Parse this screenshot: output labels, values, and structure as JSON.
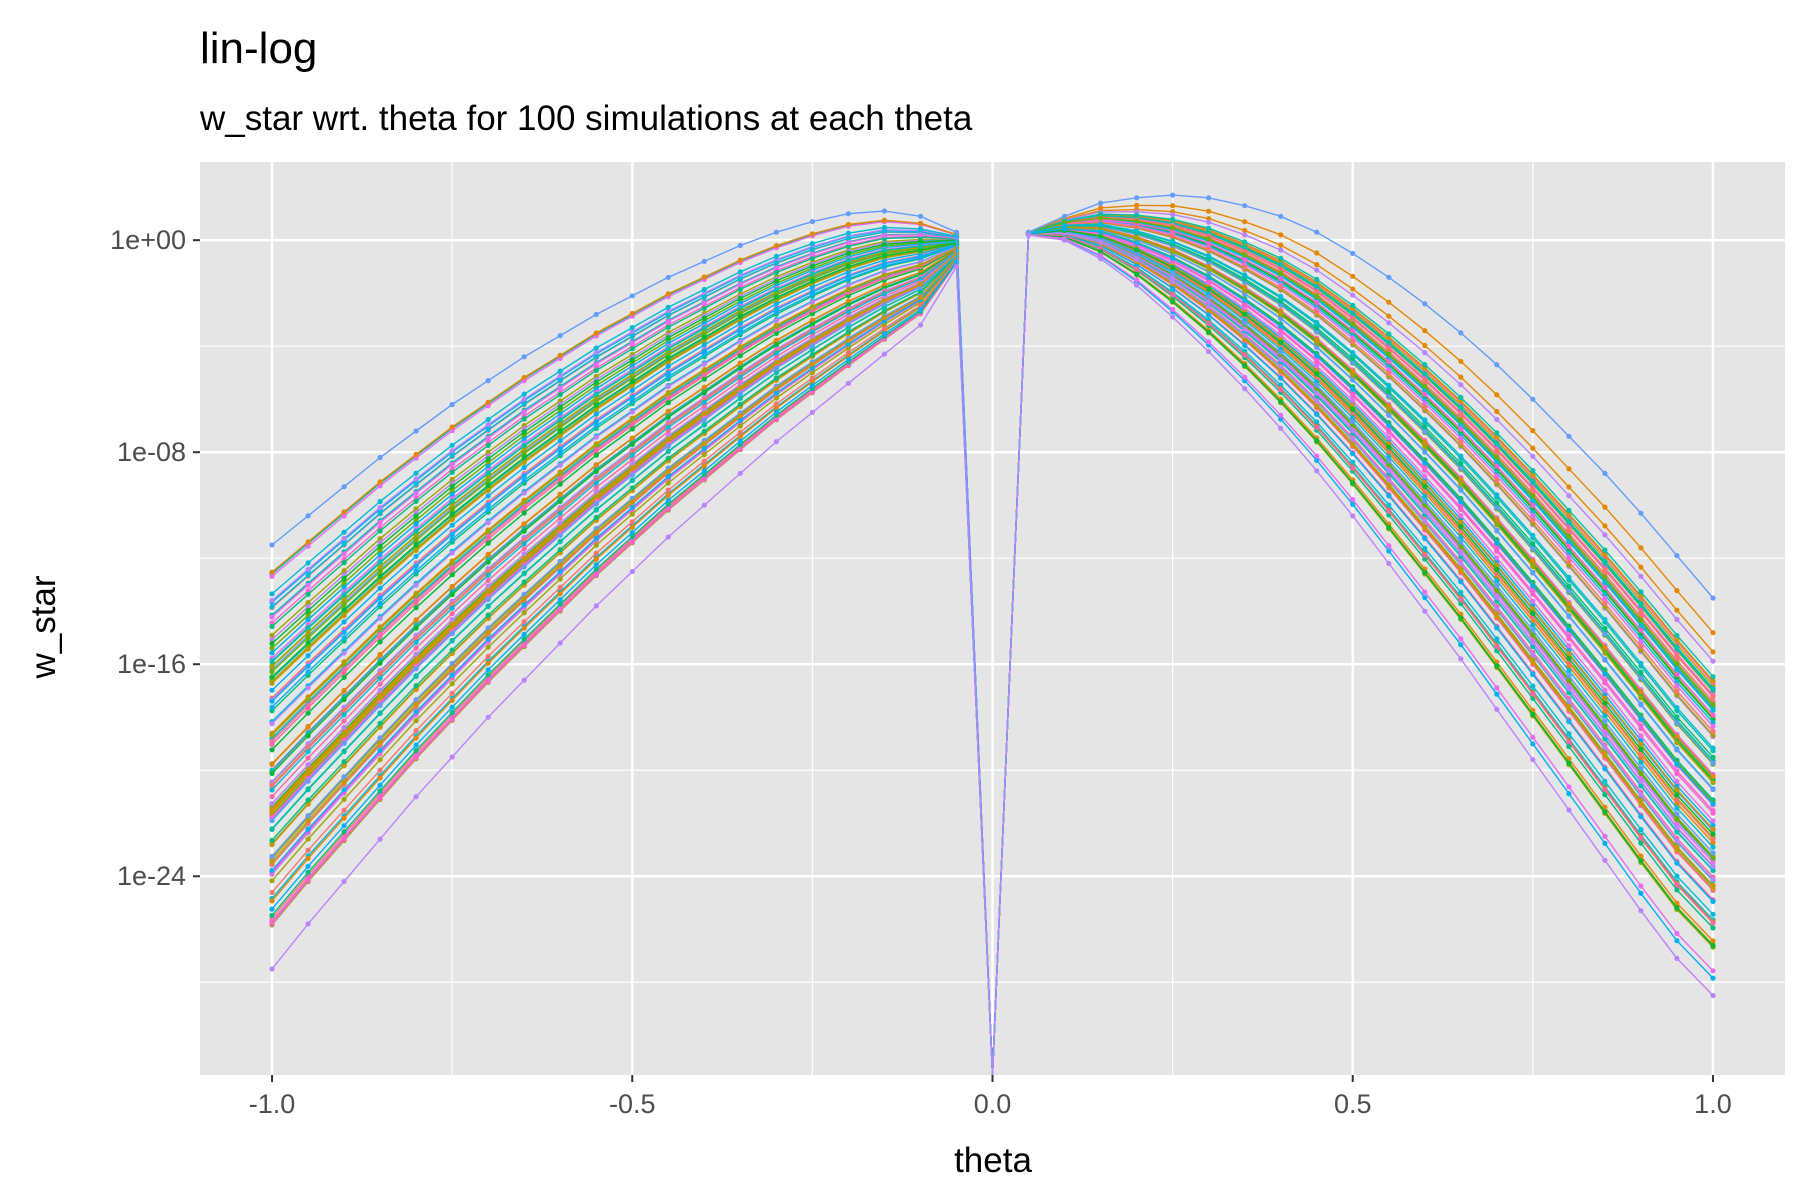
{
  "chart_data": {
    "type": "line",
    "title": "lin-log",
    "subtitle": "w_star wrt. theta for 100 simulations at each theta",
    "xlabel": "theta",
    "ylabel": "w_star",
    "xlim": [
      -1.1,
      1.1
    ],
    "ylim_log10": [
      -31.5,
      2.95
    ],
    "y_scale": "log10",
    "x_ticks": [
      -1.0,
      -0.5,
      0.0,
      0.5,
      1.0
    ],
    "x_tick_labels": [
      "-1.0",
      "-0.5",
      "0.0",
      "0.5",
      "1.0"
    ],
    "y_ticks_log10": [
      0,
      -8,
      -16,
      -24
    ],
    "y_tick_labels": [
      "1e+00",
      "1e-08",
      "1e-16",
      "1e-24"
    ],
    "x": [
      -1.0,
      -0.95,
      -0.9,
      -0.85,
      -0.8,
      -0.75,
      -0.7,
      -0.65,
      -0.6,
      -0.55,
      -0.5,
      -0.45,
      -0.4,
      -0.35,
      -0.3,
      -0.25,
      -0.2,
      -0.15,
      -0.1,
      -0.05,
      0.0,
      0.05,
      0.1,
      0.15,
      0.2,
      0.25,
      0.3,
      0.35,
      0.4,
      0.45,
      0.5,
      0.55,
      0.6,
      0.65,
      0.7,
      0.75,
      0.8,
      0.85,
      0.9,
      0.95,
      1.0
    ],
    "n_series": 100,
    "grid": true,
    "legend": "none",
    "panel_background": "#e5e5e5",
    "grid_color": "#ffffff",
    "reference_series": [
      {
        "values_log10": [
          -11.5,
          -10.4,
          -9.3,
          -8.2,
          -7.2,
          -6.2,
          -5.3,
          -4.4,
          -3.6,
          -2.8,
          -2.1,
          -1.4,
          -0.8,
          -0.2,
          0.3,
          0.7,
          1.0,
          1.1,
          0.9,
          0.3,
          -31.5,
          0.3,
          0.9,
          1.4,
          1.6,
          1.7,
          1.6,
          1.3,
          0.9,
          0.3,
          -0.5,
          -1.4,
          -2.4,
          -3.5,
          -4.7,
          -6.0,
          -7.4,
          -8.8,
          -10.3,
          -11.9,
          -13.5
        ]
      },
      {
        "values_log10": [
          -27.5,
          -25.8,
          -24.2,
          -22.6,
          -21.0,
          -19.5,
          -18.0,
          -16.6,
          -15.2,
          -13.8,
          -12.5,
          -11.2,
          -10.0,
          -8.8,
          -7.6,
          -6.5,
          -5.4,
          -4.3,
          -3.2,
          -1.0,
          -31.5,
          0.2,
          0.0,
          -0.7,
          -1.7,
          -2.9,
          -4.2,
          -5.6,
          -7.1,
          -8.7,
          -10.4,
          -12.2,
          -14.0,
          -15.8,
          -17.7,
          -19.6,
          -21.5,
          -23.4,
          -25.3,
          -27.1,
          -28.5
        ]
      }
    ],
    "palette": [
      "#F8766D",
      "#E58700",
      "#C99800",
      "#A3A500",
      "#6BB100",
      "#00BA38",
      "#00BF7D",
      "#00C0AF",
      "#00BCD8",
      "#00B0F6",
      "#619CFF",
      "#B983FF",
      "#E76BF3",
      "#FD61D1",
      "#FF67A4"
    ]
  }
}
